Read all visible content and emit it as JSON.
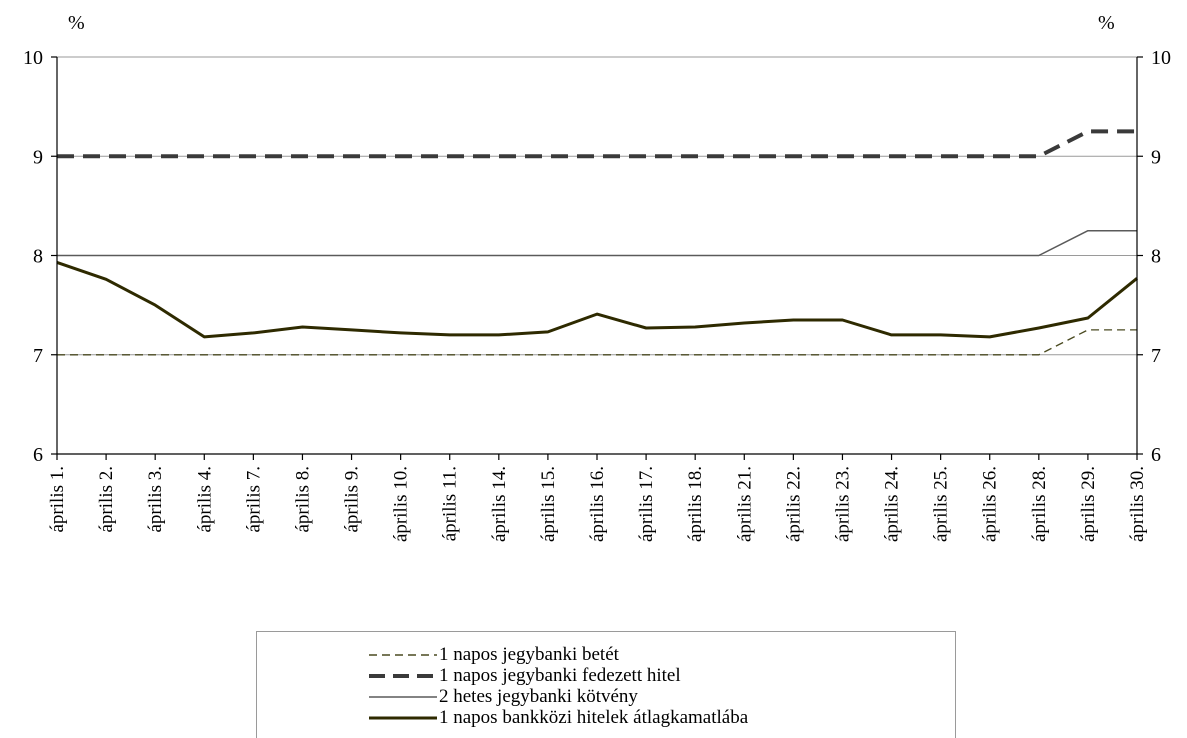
{
  "y_unit_left": "%",
  "y_unit_right": "%",
  "colors": {
    "axis": "#000000",
    "gridline": "#9a9a9a",
    "deposit": "#4a4a20",
    "collateral_loan": "#3a3a3a",
    "bond": "#5a5a5a",
    "interbank": "#2e2a00"
  },
  "chart_data": {
    "type": "line",
    "categories": [
      "április 1.",
      "április 2.",
      "április 3.",
      "április 4.",
      "április 7.",
      "április 8.",
      "április 9.",
      "április 10.",
      "április 11.",
      "április 14.",
      "április 15.",
      "április 16.",
      "április 17.",
      "április 18.",
      "április 21.",
      "április 22.",
      "április 23.",
      "április 24.",
      "április 25.",
      "április 26.",
      "április 28.",
      "április 29.",
      "április 30."
    ],
    "ylim": [
      6,
      10
    ],
    "yticks": [
      6,
      7,
      8,
      9,
      10
    ],
    "grid": "horizontal",
    "legend": "bottom",
    "series": [
      {
        "name": "1 napos jegybanki betét",
        "style": "dashed-thin",
        "values": [
          7,
          7,
          7,
          7,
          7,
          7,
          7,
          7,
          7,
          7,
          7,
          7,
          7,
          7,
          7,
          7,
          7,
          7,
          7,
          7,
          7,
          7.25,
          7.25
        ]
      },
      {
        "name": "1 napos jegybanki fedezett hitel",
        "style": "dashed-thick",
        "values": [
          9,
          9,
          9,
          9,
          9,
          9,
          9,
          9,
          9,
          9,
          9,
          9,
          9,
          9,
          9,
          9,
          9,
          9,
          9,
          9,
          9,
          9.25,
          9.25
        ]
      },
      {
        "name": "2 hetes jegybanki kötvény",
        "style": "solid-thin",
        "values": [
          8,
          8,
          8,
          8,
          8,
          8,
          8,
          8,
          8,
          8,
          8,
          8,
          8,
          8,
          8,
          8,
          8,
          8,
          8,
          8,
          8,
          8.25,
          8.25
        ]
      },
      {
        "name": "1 napos bankközi hitelek átlagkamatlába",
        "style": "solid-thick",
        "values": [
          7.93,
          7.76,
          7.5,
          7.18,
          7.22,
          7.28,
          7.25,
          7.22,
          7.2,
          7.2,
          7.23,
          7.41,
          7.27,
          7.28,
          7.32,
          7.35,
          7.35,
          7.2,
          7.2,
          7.18,
          7.27,
          7.37,
          7.77
        ]
      }
    ]
  }
}
